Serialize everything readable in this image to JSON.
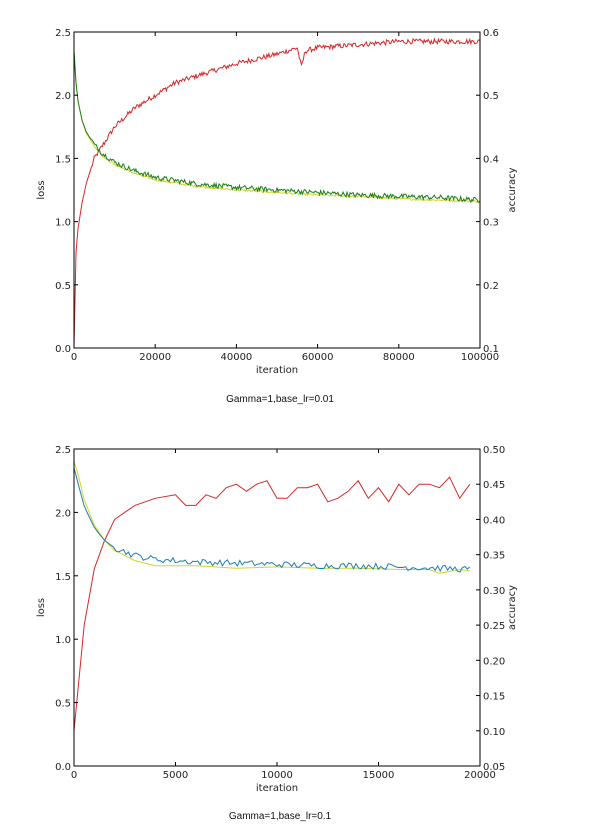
{
  "chart_data": [
    {
      "type": "line",
      "caption": "Gamma=1,base_lr=0.01",
      "xlabel": "iteration",
      "ylabel": "loss",
      "y2label": "accuracy",
      "xlim": [
        0,
        100000
      ],
      "ylim": [
        0,
        2.5
      ],
      "y2lim": [
        0.1,
        0.6
      ],
      "xticks": [
        "0",
        "20000",
        "40000",
        "60000",
        "80000",
        "100000"
      ],
      "yticks": [
        "0.0",
        "0.5",
        "1.0",
        "1.5",
        "2.0",
        "2.5"
      ],
      "y2ticks": [
        "0.1",
        "0.2",
        "0.3",
        "0.4",
        "0.5",
        "0.6"
      ],
      "series": [
        {
          "axis": "accuracy",
          "color": "#d62728",
          "x": [
            0,
            500,
            1000,
            2000,
            3000,
            4000,
            5000,
            7000,
            10000,
            15000,
            20000,
            25000,
            30000,
            40000,
            50000,
            55000,
            56000,
            57000,
            60000,
            70000,
            80000,
            90000,
            100000
          ],
          "y": [
            0.1,
            0.25,
            0.29,
            0.33,
            0.36,
            0.38,
            0.4,
            0.42,
            0.45,
            0.48,
            0.5,
            0.52,
            0.53,
            0.55,
            0.565,
            0.575,
            0.545,
            0.57,
            0.575,
            0.58,
            0.585,
            0.585,
            0.585
          ]
        },
        {
          "axis": "loss",
          "color": "#d4d42a",
          "x": [
            0,
            500,
            1000,
            2000,
            3000,
            5000,
            7000,
            10000,
            15000,
            20000,
            30000,
            40000,
            50000,
            60000,
            70000,
            80000,
            90000,
            100000
          ],
          "y": [
            2.35,
            2.1,
            1.95,
            1.8,
            1.7,
            1.6,
            1.52,
            1.45,
            1.38,
            1.33,
            1.28,
            1.25,
            1.23,
            1.21,
            1.2,
            1.18,
            1.17,
            1.16
          ]
        },
        {
          "axis": "loss",
          "color": "#1a7f1a",
          "x": [
            0,
            500,
            1000,
            2000,
            3000,
            5000,
            7000,
            10000,
            15000,
            20000,
            30000,
            40000,
            50000,
            60000,
            70000,
            80000,
            90000,
            100000
          ],
          "y": [
            2.35,
            2.1,
            1.95,
            1.8,
            1.71,
            1.61,
            1.54,
            1.47,
            1.4,
            1.35,
            1.3,
            1.27,
            1.25,
            1.23,
            1.21,
            1.2,
            1.19,
            1.17
          ]
        }
      ]
    },
    {
      "type": "line",
      "caption": "Gamma=1,base_lr=0.1",
      "xlabel": "iteration",
      "ylabel": "loss",
      "y2label": "accuracy",
      "xlim": [
        0,
        20000
      ],
      "ylim": [
        0,
        2.5
      ],
      "y2lim": [
        0.05,
        0.5
      ],
      "xticks": [
        "0",
        "5000",
        "10000",
        "15000",
        "20000"
      ],
      "yticks": [
        "0.0",
        "0.5",
        "1.0",
        "1.5",
        "2.0",
        "2.5"
      ],
      "y2ticks": [
        "0.05",
        "0.10",
        "0.15",
        "0.20",
        "0.25",
        "0.30",
        "0.35",
        "0.40",
        "0.45",
        "0.50"
      ],
      "series": [
        {
          "axis": "accuracy",
          "color": "#d62728",
          "x": [
            0,
            500,
            1000,
            1500,
            2000,
            3000,
            4000,
            5000,
            5500,
            6000,
            6500,
            7000,
            7500,
            8000,
            8500,
            9000,
            9500,
            10000,
            10500,
            11000,
            11500,
            12000,
            12500,
            13000,
            13500,
            14000,
            14500,
            15000,
            15500,
            16000,
            16500,
            17000,
            17500,
            18000,
            18500,
            19000,
            19500
          ],
          "y": [
            0.1,
            0.25,
            0.33,
            0.37,
            0.4,
            0.42,
            0.43,
            0.435,
            0.42,
            0.42,
            0.435,
            0.43,
            0.445,
            0.45,
            0.44,
            0.45,
            0.455,
            0.43,
            0.43,
            0.445,
            0.445,
            0.45,
            0.425,
            0.43,
            0.44,
            0.455,
            0.43,
            0.445,
            0.425,
            0.45,
            0.435,
            0.45,
            0.45,
            0.445,
            0.46,
            0.43,
            0.45
          ]
        },
        {
          "axis": "loss",
          "color": "#d4d42a",
          "x": [
            0,
            200,
            500,
            1000,
            1500,
            2000,
            3000,
            4000,
            5000,
            6000,
            8000,
            10000,
            12000,
            14000,
            16000,
            17500,
            18000,
            19000,
            19500
          ],
          "y": [
            2.4,
            2.3,
            2.1,
            1.9,
            1.78,
            1.7,
            1.62,
            1.58,
            1.58,
            1.58,
            1.56,
            1.57,
            1.56,
            1.56,
            1.55,
            1.55,
            1.52,
            1.55,
            1.54
          ]
        },
        {
          "axis": "loss",
          "color": "#1a7fb0",
          "x": [
            0,
            500,
            1000,
            1500,
            2000,
            3000,
            4000,
            5000,
            6000,
            8000,
            10000,
            12000,
            14000,
            16000,
            18000,
            19500
          ],
          "y": [
            2.35,
            2.05,
            1.88,
            1.78,
            1.72,
            1.66,
            1.63,
            1.62,
            1.61,
            1.6,
            1.59,
            1.58,
            1.58,
            1.57,
            1.56,
            1.55
          ]
        }
      ]
    }
  ]
}
